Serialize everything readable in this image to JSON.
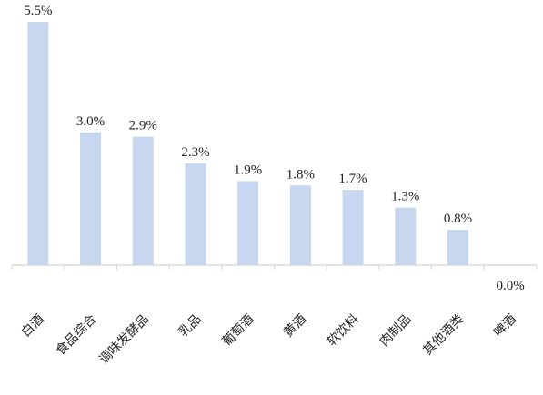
{
  "chart_data": {
    "type": "bar",
    "title": "",
    "xlabel": "",
    "ylabel": "",
    "categories": [
      "白酒",
      "食品综合",
      "调味发酵品",
      "乳品",
      "葡萄酒",
      "黄酒",
      "软饮料",
      "肉制品",
      "其他酒类",
      "啤酒"
    ],
    "values": [
      5.5,
      3.0,
      2.9,
      2.3,
      1.9,
      1.8,
      1.7,
      1.3,
      0.8,
      0.0
    ],
    "data_labels": [
      "5.5%",
      "3.0%",
      "2.9%",
      "2.3%",
      "1.9%",
      "1.8%",
      "1.7%",
      "1.3%",
      "0.8%",
      "0.0%"
    ],
    "ylim": [
      0,
      5.5
    ],
    "grid": false,
    "legend": "none",
    "bar_color": "#c6d7ef"
  }
}
